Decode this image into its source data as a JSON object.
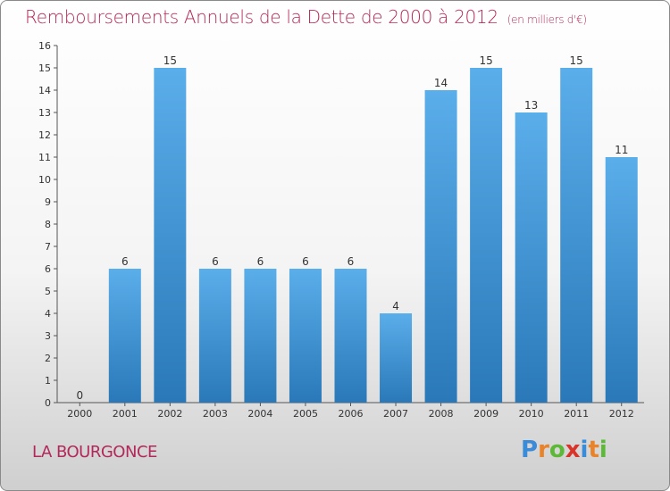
{
  "title": "Remboursements Annuels de la Dette de 2000 à 2012",
  "unit": "(en milliers d'€)",
  "commune": "LA BOURGONCE",
  "logo": {
    "text": "Proxiti",
    "letters": [
      "P",
      "r",
      "o",
      "x",
      "i",
      "t",
      "i"
    ],
    "colors": [
      "#3a8bd8",
      "#e8832a",
      "#5cb837",
      "#d8342a",
      "#3a8bd8",
      "#e8832a",
      "#5cb837"
    ]
  },
  "colors": {
    "bar_top": "#5aaeea",
    "bar_bottom": "#2a78b8",
    "title": "#b3285a"
  },
  "chart_data": {
    "type": "bar",
    "categories": [
      "2000",
      "2001",
      "2002",
      "2003",
      "2004",
      "2005",
      "2006",
      "2007",
      "2008",
      "2009",
      "2010",
      "2011",
      "2012"
    ],
    "values": [
      0,
      6,
      15,
      6,
      6,
      6,
      6,
      4,
      14,
      15,
      13,
      15,
      11
    ],
    "ylim": [
      0,
      16
    ],
    "yticks": [
      0,
      1,
      2,
      3,
      4,
      5,
      6,
      7,
      8,
      9,
      10,
      11,
      12,
      13,
      14,
      15,
      16
    ],
    "grid": false
  }
}
